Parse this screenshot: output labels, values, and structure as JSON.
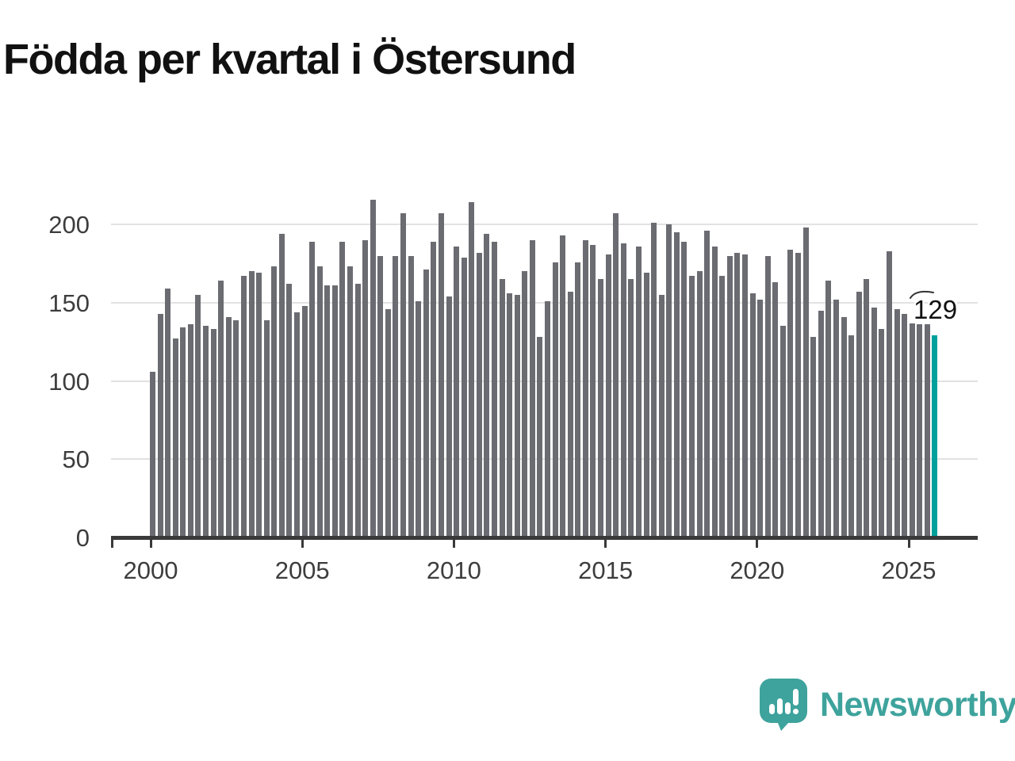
{
  "title": "Födda per kvartal i Östersund",
  "y_axis": {
    "tick_labels": [
      "0",
      "50",
      "100",
      "150",
      "200"
    ]
  },
  "x_axis": {
    "tick_labels": [
      "2000",
      "2005",
      "2010",
      "2015",
      "2020",
      "2025"
    ]
  },
  "annotation": {
    "label": "129"
  },
  "logo": {
    "text": "Newsworthy",
    "icon": "speech-bubble-bar-chart"
  },
  "colors": {
    "bar": "#6b6b72",
    "highlight": "#00a09b",
    "axis": "#3a3a3a",
    "grid": "#e2e2e2",
    "title_text": "#111111",
    "tick_text": "#3d3d3d",
    "logo": "#3ea39c"
  },
  "chart_data": {
    "type": "bar",
    "title": "Födda per kvartal i Östersund",
    "start_year": 2000,
    "frequency": "quarterly",
    "values": [
      106,
      143,
      159,
      127,
      134,
      136,
      155,
      135,
      133,
      164,
      141,
      139,
      167,
      170,
      169,
      139,
      173,
      194,
      162,
      144,
      148,
      189,
      173,
      161,
      161,
      189,
      173,
      162,
      190,
      216,
      180,
      146,
      180,
      207,
      180,
      151,
      171,
      189,
      207,
      154,
      186,
      179,
      214,
      182,
      194,
      189,
      165,
      156,
      155,
      170,
      190,
      128,
      151,
      176,
      193,
      157,
      176,
      190,
      187,
      165,
      181,
      207,
      188,
      165,
      186,
      169,
      201,
      155,
      200,
      195,
      189,
      167,
      170,
      196,
      186,
      167,
      180,
      182,
      181,
      156,
      152,
      180,
      163,
      135,
      184,
      182,
      198,
      128,
      145,
      164,
      152,
      141,
      129,
      157,
      165,
      147,
      133,
      183,
      146,
      143,
      137,
      136,
      136,
      129
    ],
    "highlight_index": 103,
    "highlight_label": "129",
    "yticks": [
      0,
      50,
      100,
      150,
      200
    ],
    "xticks": [
      2000,
      2005,
      2010,
      2015,
      2020,
      2025
    ],
    "ylim": [
      0,
      220
    ],
    "grid": true,
    "legend": false
  }
}
